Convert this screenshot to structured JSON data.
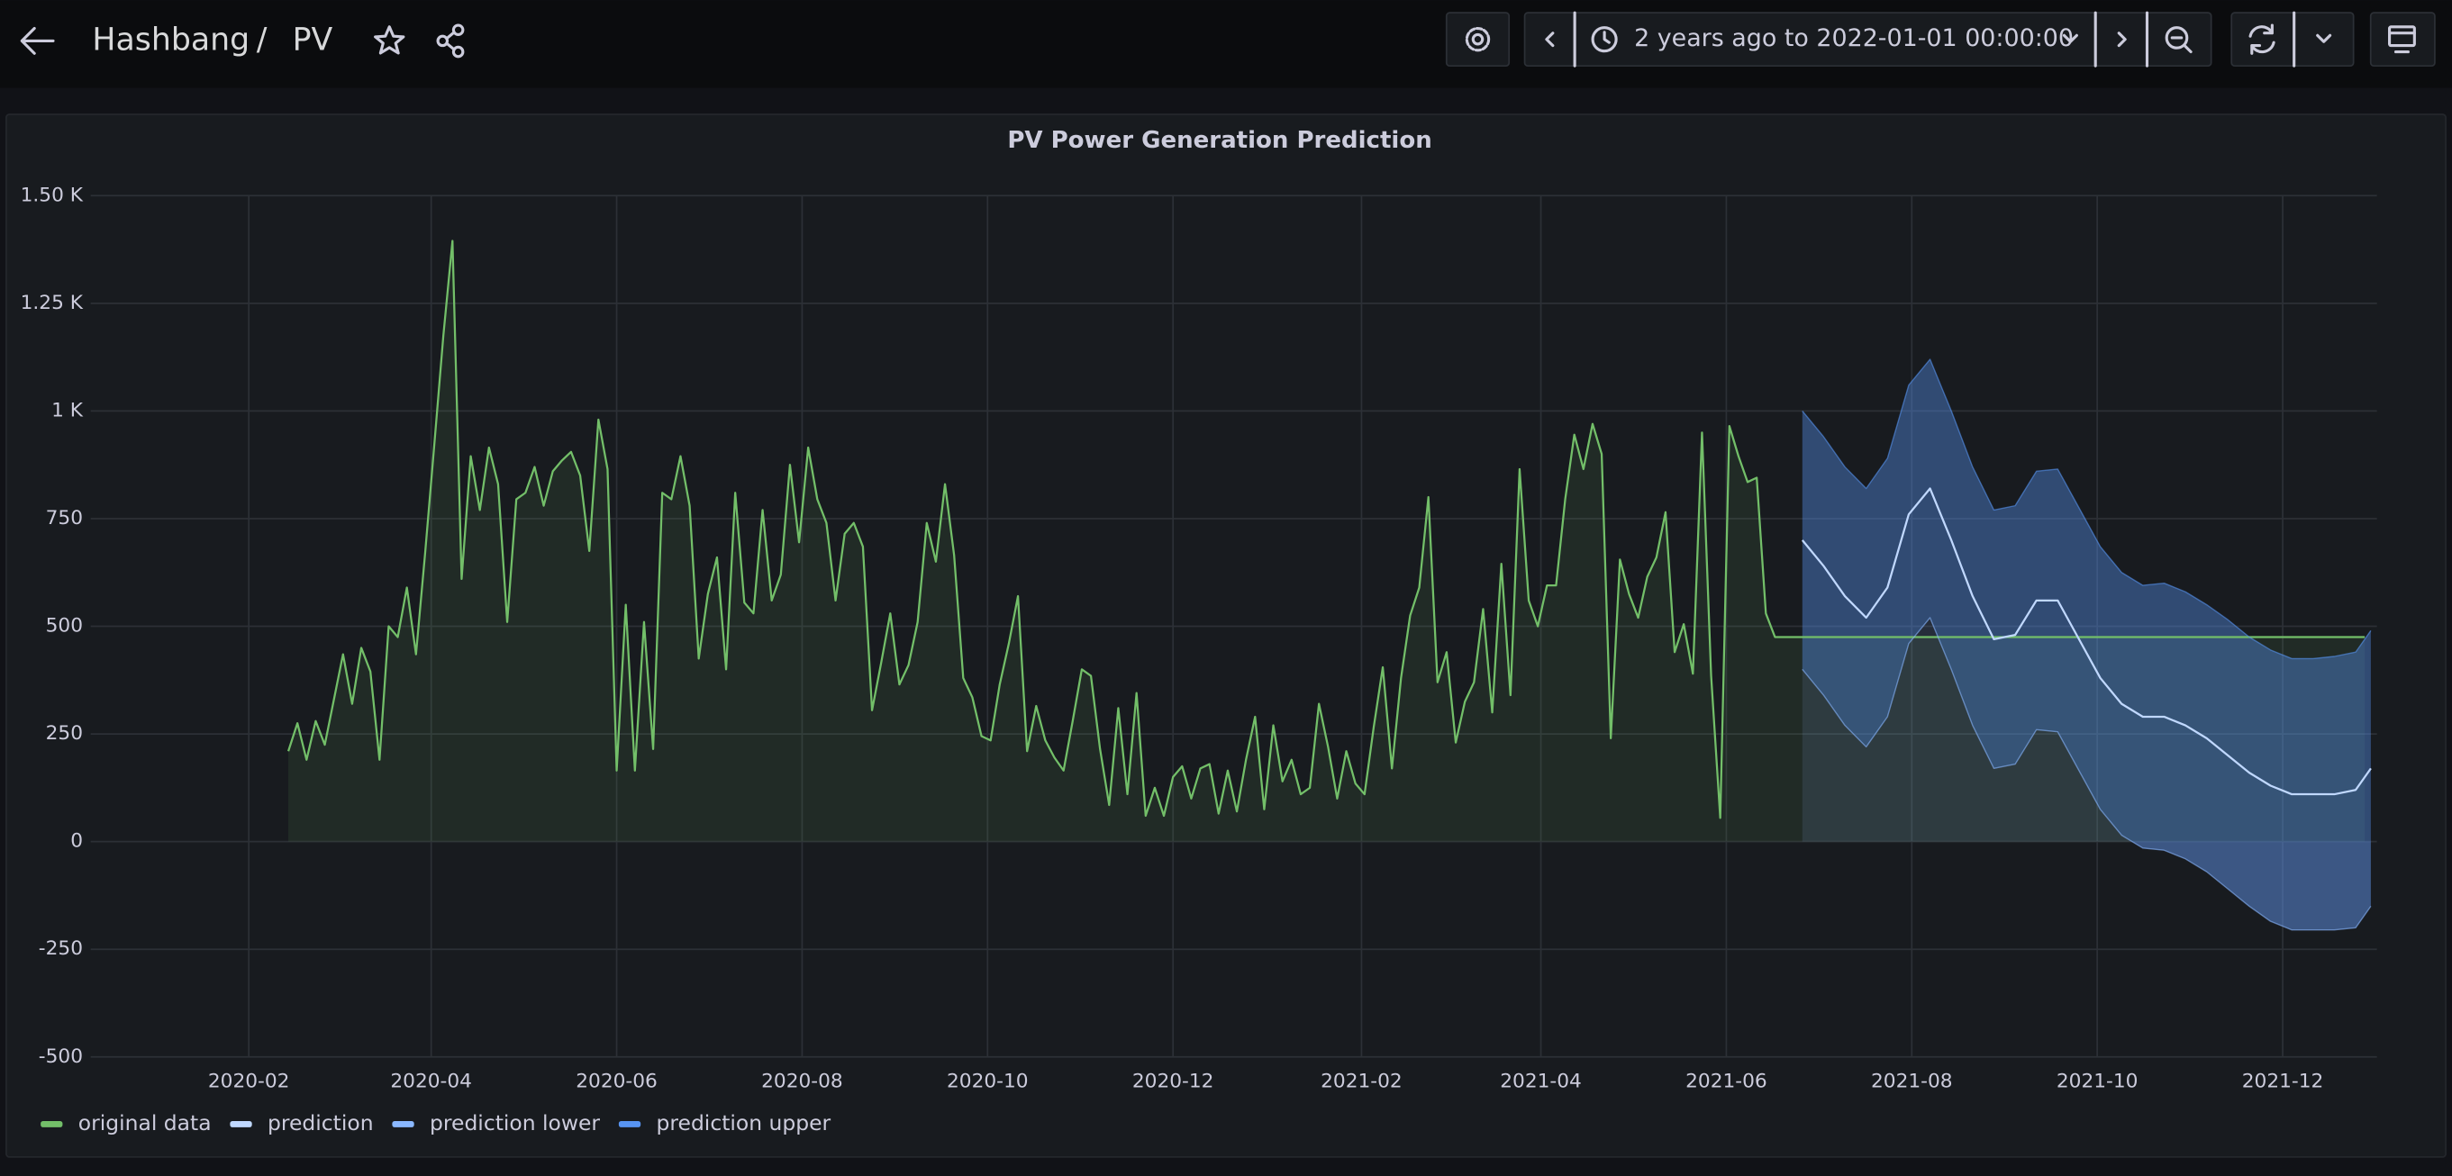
{
  "header": {
    "title": "Hashbang",
    "separator": "/",
    "page": "PV",
    "time_range": "2 years ago to 2022-01-01 00:00:00"
  },
  "chart_data": {
    "type": "line",
    "title": "PV Power Generation Prediction",
    "xlim": [
      "2019-12-11",
      "2022-01-01"
    ],
    "xticks": [
      {
        "value": "2020-02-01",
        "label": "2020-02"
      },
      {
        "value": "2020-04-01",
        "label": "2020-04"
      },
      {
        "value": "2020-06-01",
        "label": "2020-06"
      },
      {
        "value": "2020-08-01",
        "label": "2020-08"
      },
      {
        "value": "2020-10-01",
        "label": "2020-10"
      },
      {
        "value": "2020-12-01",
        "label": "2020-12"
      },
      {
        "value": "2021-02-01",
        "label": "2021-02"
      },
      {
        "value": "2021-04-01",
        "label": "2021-04"
      },
      {
        "value": "2021-06-01",
        "label": "2021-06"
      },
      {
        "value": "2021-08-01",
        "label": "2021-08"
      },
      {
        "value": "2021-10-01",
        "label": "2021-10"
      },
      {
        "value": "2021-12-01",
        "label": "2021-12"
      }
    ],
    "ylim": [
      -500,
      1500
    ],
    "yticks": [
      -500,
      -250,
      0,
      250,
      500,
      750,
      {
        "value": 1000,
        "label": "1 K"
      },
      {
        "value": 1250,
        "label": "1.25 K"
      },
      {
        "value": 1500,
        "label": "1.50 K"
      }
    ],
    "grid": true,
    "legend": "bottom-left",
    "series": [
      {
        "name": "original data",
        "color": "#73bf69",
        "x": [
          "2020-02-14",
          "2020-02-17",
          "2020-02-20",
          "2020-02-23",
          "2020-02-26",
          "2020-02-29",
          "2020-03-03",
          "2020-03-06",
          "2020-03-09",
          "2020-03-12",
          "2020-03-15",
          "2020-03-18",
          "2020-03-21",
          "2020-03-24",
          "2020-03-27",
          "2020-03-30",
          "2020-04-02",
          "2020-04-05",
          "2020-04-08",
          "2020-04-11",
          "2020-04-14",
          "2020-04-17",
          "2020-04-20",
          "2020-04-23",
          "2020-04-26",
          "2020-04-29",
          "2020-05-02",
          "2020-05-05",
          "2020-05-08",
          "2020-05-11",
          "2020-05-14",
          "2020-05-17",
          "2020-05-20",
          "2020-05-23",
          "2020-05-26",
          "2020-05-29",
          "2020-06-01",
          "2020-06-04",
          "2020-06-07",
          "2020-06-10",
          "2020-06-13",
          "2020-06-16",
          "2020-06-19",
          "2020-06-22",
          "2020-06-25",
          "2020-06-28",
          "2020-07-01",
          "2020-07-04",
          "2020-07-07",
          "2020-07-10",
          "2020-07-13",
          "2020-07-16",
          "2020-07-19",
          "2020-07-22",
          "2020-07-25",
          "2020-07-28",
          "2020-07-31",
          "2020-08-03",
          "2020-08-06",
          "2020-08-09",
          "2020-08-12",
          "2020-08-15",
          "2020-08-18",
          "2020-08-21",
          "2020-08-24",
          "2020-08-27",
          "2020-08-30",
          "2020-09-02",
          "2020-09-05",
          "2020-09-08",
          "2020-09-11",
          "2020-09-14",
          "2020-09-17",
          "2020-09-20",
          "2020-09-23",
          "2020-09-26",
          "2020-09-29",
          "2020-10-02",
          "2020-10-05",
          "2020-10-08",
          "2020-10-11",
          "2020-10-14",
          "2020-10-17",
          "2020-10-20",
          "2020-10-23",
          "2020-10-26",
          "2020-10-29",
          "2020-11-01",
          "2020-11-04",
          "2020-11-07",
          "2020-11-10",
          "2020-11-13",
          "2020-11-16",
          "2020-11-19",
          "2020-11-22",
          "2020-11-25",
          "2020-11-28",
          "2020-12-01",
          "2020-12-04",
          "2020-12-07",
          "2020-12-10",
          "2020-12-13",
          "2020-12-16",
          "2020-12-19",
          "2020-12-22",
          "2020-12-25",
          "2020-12-28",
          "2020-12-31",
          "2021-01-03",
          "2021-01-06",
          "2021-01-09",
          "2021-01-12",
          "2021-01-15",
          "2021-01-18",
          "2021-01-21",
          "2021-01-24",
          "2021-01-27",
          "2021-01-30",
          "2021-02-02",
          "2021-02-05",
          "2021-02-08",
          "2021-02-11",
          "2021-02-14",
          "2021-02-17",
          "2021-02-20",
          "2021-02-23",
          "2021-02-26",
          "2021-03-01",
          "2021-03-04",
          "2021-03-07",
          "2021-03-10",
          "2021-03-13",
          "2021-03-16",
          "2021-03-19",
          "2021-03-22",
          "2021-03-25",
          "2021-03-28",
          "2021-03-31",
          "2021-04-03",
          "2021-04-06",
          "2021-04-09",
          "2021-04-12",
          "2021-04-15",
          "2021-04-18",
          "2021-04-21",
          "2021-04-24",
          "2021-04-27",
          "2021-04-30",
          "2021-05-03",
          "2021-05-06",
          "2021-05-09",
          "2021-05-12",
          "2021-05-15",
          "2021-05-18",
          "2021-05-21",
          "2021-05-24",
          "2021-05-27",
          "2021-05-30",
          "2021-06-02",
          "2021-06-05",
          "2021-06-08",
          "2021-06-11",
          "2021-06-14",
          "2021-06-17",
          "2021-06-24",
          "2021-12-28"
        ],
        "values": [
          210,
          275,
          190,
          280,
          225,
          330,
          435,
          320,
          450,
          395,
          190,
          500,
          475,
          590,
          435,
          670,
          920,
          1175,
          1395,
          610,
          895,
          770,
          915,
          830,
          510,
          795,
          810,
          870,
          780,
          860,
          885,
          905,
          850,
          675,
          980,
          865,
          165,
          550,
          165,
          510,
          215,
          810,
          795,
          895,
          780,
          425,
          575,
          660,
          400,
          810,
          555,
          530,
          770,
          560,
          620,
          875,
          695,
          915,
          795,
          740,
          560,
          715,
          740,
          685,
          305,
          415,
          530,
          365,
          410,
          510,
          740,
          650,
          830,
          665,
          380,
          335,
          245,
          235,
          365,
          460,
          570,
          210,
          315,
          235,
          195,
          165,
          280,
          400,
          385,
          215,
          85,
          310,
          110,
          345,
          60,
          125,
          60,
          150,
          175,
          100,
          170,
          180,
          65,
          165,
          70,
          190,
          290,
          75,
          270,
          140,
          190,
          110,
          125,
          320,
          220,
          100,
          210,
          135,
          110,
          265,
          405,
          170,
          380,
          525,
          590,
          800,
          370,
          440,
          230,
          325,
          370,
          540,
          300,
          645,
          340,
          865,
          560,
          500,
          595,
          595,
          795,
          945,
          865,
          970,
          900,
          240,
          655,
          575,
          520,
          615,
          660,
          765,
          440,
          505,
          390,
          950,
          385,
          55,
          965,
          895,
          835,
          845,
          530,
          475,
          475,
          475
        ]
      },
      {
        "name": "prediction",
        "color": "#c0d8ff",
        "x": [
          "2021-06-26",
          "2021-07-03",
          "2021-07-10",
          "2021-07-17",
          "2021-07-24",
          "2021-07-31",
          "2021-08-07",
          "2021-08-14",
          "2021-08-21",
          "2021-08-28",
          "2021-09-04",
          "2021-09-11",
          "2021-09-18",
          "2021-09-25",
          "2021-10-02",
          "2021-10-09",
          "2021-10-16",
          "2021-10-23",
          "2021-10-30",
          "2021-11-06",
          "2021-11-13",
          "2021-11-20",
          "2021-11-27",
          "2021-12-04",
          "2021-12-11",
          "2021-12-18",
          "2021-12-25",
          "2021-12-30"
        ],
        "values": [
          700,
          640,
          570,
          520,
          590,
          760,
          820,
          700,
          570,
          470,
          480,
          560,
          560,
          470,
          380,
          320,
          290,
          290,
          270,
          240,
          200,
          160,
          130,
          110,
          110,
          110,
          120,
          170
        ]
      },
      {
        "name": "prediction lower",
        "color": "#8ab8ff",
        "x": [
          "2021-06-26",
          "2021-07-03",
          "2021-07-10",
          "2021-07-17",
          "2021-07-24",
          "2021-07-31",
          "2021-08-07",
          "2021-08-14",
          "2021-08-21",
          "2021-08-28",
          "2021-09-04",
          "2021-09-11",
          "2021-09-18",
          "2021-09-25",
          "2021-10-02",
          "2021-10-09",
          "2021-10-16",
          "2021-10-23",
          "2021-10-30",
          "2021-11-06",
          "2021-11-13",
          "2021-11-20",
          "2021-11-27",
          "2021-12-04",
          "2021-12-11",
          "2021-12-18",
          "2021-12-25",
          "2021-12-30"
        ],
        "values": [
          400,
          340,
          270,
          220,
          290,
          460,
          520,
          400,
          270,
          170,
          180,
          260,
          255,
          165,
          75,
          15,
          -15,
          -20,
          -40,
          -70,
          -110,
          -150,
          -185,
          -205,
          -205,
          -205,
          -200,
          -150
        ]
      },
      {
        "name": "prediction upper",
        "color": "#5794f2",
        "x": [
          "2021-06-26",
          "2021-07-03",
          "2021-07-10",
          "2021-07-17",
          "2021-07-24",
          "2021-07-31",
          "2021-08-07",
          "2021-08-14",
          "2021-08-21",
          "2021-08-28",
          "2021-09-04",
          "2021-09-11",
          "2021-09-18",
          "2021-09-25",
          "2021-10-02",
          "2021-10-09",
          "2021-10-16",
          "2021-10-23",
          "2021-10-30",
          "2021-11-06",
          "2021-11-13",
          "2021-11-20",
          "2021-11-27",
          "2021-12-04",
          "2021-12-11",
          "2021-12-18",
          "2021-12-25",
          "2021-12-30"
        ],
        "values": [
          1000,
          940,
          870,
          820,
          890,
          1060,
          1120,
          1000,
          870,
          770,
          780,
          860,
          865,
          775,
          685,
          625,
          595,
          600,
          580,
          550,
          515,
          475,
          445,
          425,
          425,
          430,
          440,
          490
        ]
      }
    ]
  }
}
